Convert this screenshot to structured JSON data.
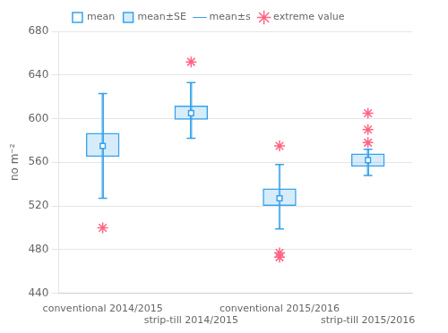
{
  "chart_data": {
    "type": "box",
    "categories": [
      "conventional 2014/2015",
      "strip-till 2014/2015",
      "conventional 2015/2016",
      "strip-till 2015/2016"
    ],
    "ylabel": "no m⁻²",
    "ylim": [
      440,
      680
    ],
    "yticks": [
      440,
      480,
      520,
      560,
      600,
      640,
      680
    ],
    "grid": true,
    "legend": "top",
    "series": [
      {
        "name": "mean",
        "type": "point",
        "marker": "square",
        "color": "#36a2eb",
        "values": [
          575,
          605,
          527,
          562
        ]
      },
      {
        "name": "mean±SE",
        "type": "box",
        "color": "#36a2eb",
        "low": [
          565,
          599,
          520,
          556
        ],
        "high": [
          587,
          612,
          536,
          568
        ]
      },
      {
        "name": "mean±s",
        "type": "whisker",
        "color": "#36a2eb",
        "low": [
          527,
          582,
          499,
          548
        ],
        "high": [
          623,
          633,
          558,
          572
        ]
      },
      {
        "name": "extreme value",
        "type": "point",
        "marker": "star",
        "color": "#ff6384",
        "values": [
          [
            500
          ],
          [
            652
          ],
          [
            473,
            477,
            575
          ],
          [
            590,
            578,
            605
          ]
        ]
      }
    ]
  }
}
